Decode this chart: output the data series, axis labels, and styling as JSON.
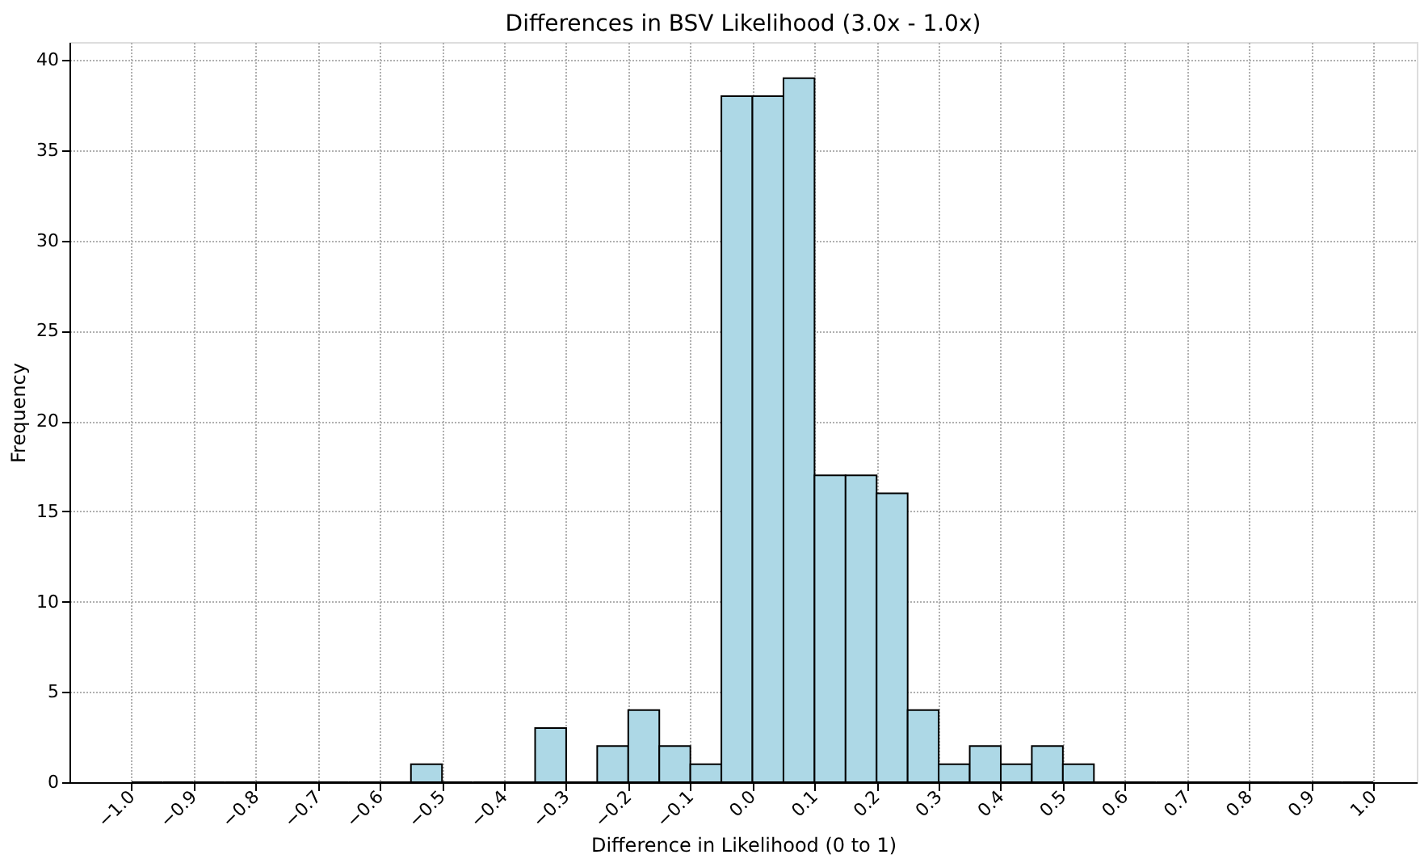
{
  "chart_data": {
    "type": "histogram",
    "title": "Differences in BSV Likelihood (3.0x - 1.0x)",
    "xlabel": "Difference in Likelihood (0 to 1)",
    "ylabel": "Frequency",
    "bins": [
      -1.0,
      -0.95,
      -0.9,
      -0.85,
      -0.8,
      -0.75,
      -0.7,
      -0.65,
      -0.6,
      -0.55,
      -0.5,
      -0.45,
      -0.4,
      -0.35,
      -0.3,
      -0.25,
      -0.2,
      -0.15,
      -0.1,
      -0.05,
      0.0,
      0.05,
      0.1,
      0.15,
      0.2,
      0.25,
      0.3,
      0.35,
      0.4,
      0.45,
      0.5,
      0.55,
      0.6,
      0.65,
      0.7,
      0.75,
      0.8,
      0.85,
      0.9,
      0.95,
      1.0
    ],
    "values": [
      0,
      0,
      0,
      0,
      0,
      0,
      0,
      0,
      0,
      1,
      0,
      0,
      0,
      3,
      0,
      2,
      4,
      2,
      1,
      38,
      38,
      39,
      17,
      17,
      16,
      4,
      1,
      2,
      1,
      2,
      1,
      0,
      0,
      0,
      0,
      0,
      0,
      0,
      0,
      0
    ],
    "color": "#add8e6",
    "xlim": [
      -1.1,
      1.07
    ],
    "ylim": [
      0,
      41
    ],
    "xticks": [
      {
        "value": -1.0,
        "label": "−1.0"
      },
      {
        "value": -0.9,
        "label": "−0.9"
      },
      {
        "value": -0.8,
        "label": "−0.8"
      },
      {
        "value": -0.7,
        "label": "−0.7"
      },
      {
        "value": -0.6,
        "label": "−0.6"
      },
      {
        "value": -0.5,
        "label": "−0.5"
      },
      {
        "value": -0.4,
        "label": "−0.4"
      },
      {
        "value": -0.3,
        "label": "−0.3"
      },
      {
        "value": -0.2,
        "label": "−0.2"
      },
      {
        "value": -0.1,
        "label": "−0.1"
      },
      {
        "value": 0.0,
        "label": "0.0"
      },
      0.1,
      0.2,
      0.3,
      0.4,
      0.5,
      0.6,
      0.7,
      0.8,
      0.9,
      {
        "value": 1.0,
        "label": "1.0"
      }
    ],
    "yticks": [
      0,
      5,
      10,
      15,
      20,
      25,
      30,
      35,
      40
    ],
    "grid": true
  }
}
